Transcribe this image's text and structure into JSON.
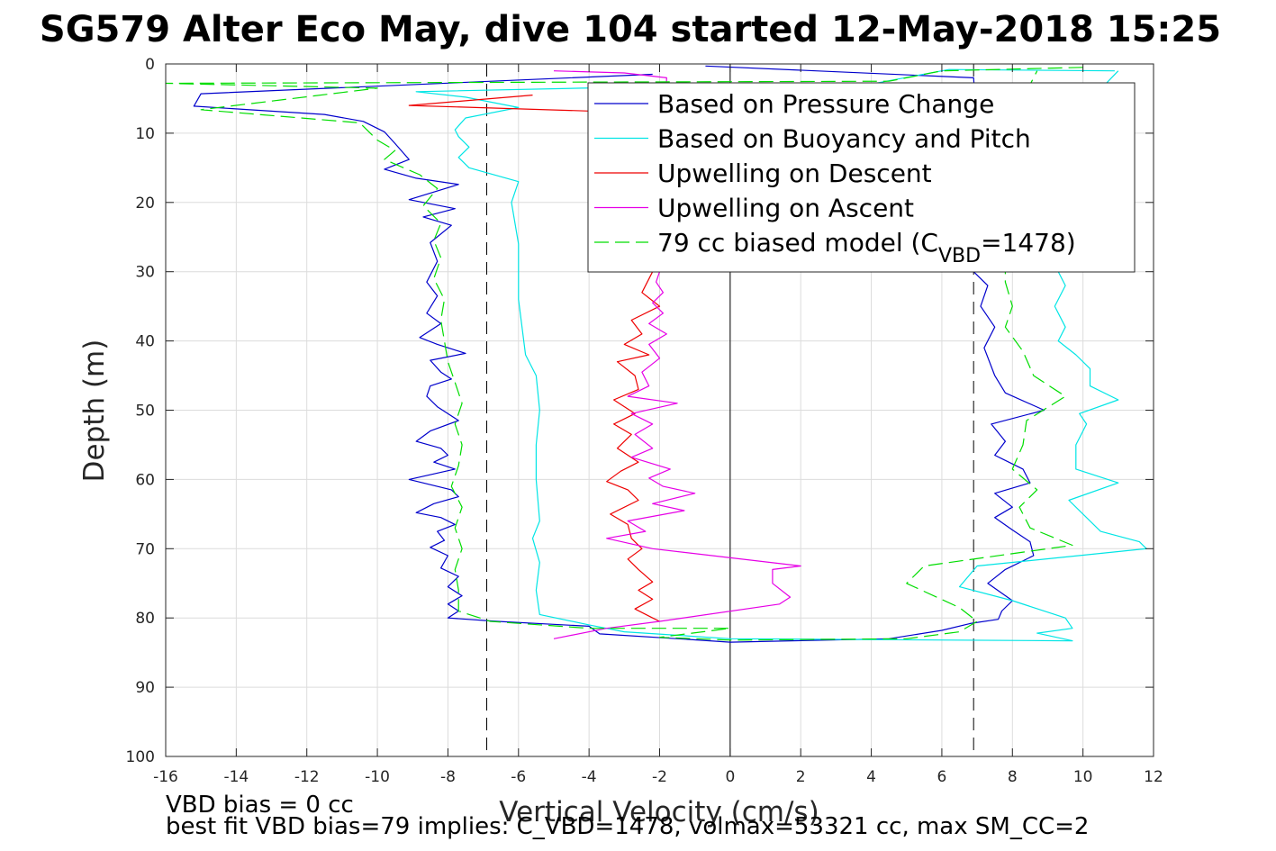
{
  "figure": {
    "title": "SG579 Alter Eco May, dive 104 started 12-May-2018 15:25",
    "footer_line1": "VBD bias = 0 cc",
    "footer_line2": "best fit VBD bias=79 implies: C_VBD=1478, volmax=53321 cc, max SM_CC=2"
  },
  "chart_data": {
    "type": "line",
    "title": "SG579 Alter Eco May, dive 104 started 12-May-2018 15:25",
    "xlabel": "Vertical Velocity (cm/s)",
    "ylabel": "Depth (m)",
    "xlim": [
      -16,
      12
    ],
    "ylim": [
      0,
      100
    ],
    "y_reversed": true,
    "grid": true,
    "legend_position": "top-right",
    "xticks": [
      -16,
      -14,
      -12,
      -10,
      -8,
      -6,
      -4,
      -2,
      0,
      2,
      4,
      6,
      8,
      10,
      12
    ],
    "yticks": [
      0,
      10,
      20,
      30,
      40,
      50,
      60,
      70,
      80,
      90,
      100
    ],
    "reference_lines": {
      "zero_x": 0,
      "dashed_x": [
        -6.9,
        6.9
      ]
    },
    "series": [
      {
        "name": "Based on Pressure Change",
        "color": "#0000cc",
        "dash": "solid",
        "points": [
          [
            -2.2,
            1.5
          ],
          [
            -15.0,
            4.3
          ],
          [
            -15.2,
            6.1
          ],
          [
            -11.5,
            7.3
          ],
          [
            -10.4,
            8.3
          ],
          [
            -9.8,
            9.8
          ],
          [
            -9.5,
            11.5
          ],
          [
            -9.1,
            13.8
          ],
          [
            -9.8,
            15.2
          ],
          [
            -8.9,
            16.5
          ],
          [
            -7.7,
            17.4
          ],
          [
            -9.1,
            19.6
          ],
          [
            -7.8,
            20.9
          ],
          [
            -8.7,
            22.1
          ],
          [
            -7.9,
            23.3
          ],
          [
            -8.5,
            25.8
          ],
          [
            -8.3,
            28.5
          ],
          [
            -8.6,
            31.5
          ],
          [
            -8.3,
            33.5
          ],
          [
            -8.6,
            36.0
          ],
          [
            -8.2,
            37.5
          ],
          [
            -8.8,
            39.5
          ],
          [
            -8.3,
            40.5
          ],
          [
            -7.5,
            41.8
          ],
          [
            -8.5,
            42.8
          ],
          [
            -8.2,
            44.5
          ],
          [
            -7.9,
            45.5
          ],
          [
            -8.5,
            46.5
          ],
          [
            -8.6,
            48.0
          ],
          [
            -8.3,
            49.5
          ],
          [
            -7.7,
            51.5
          ],
          [
            -8.5,
            53.0
          ],
          [
            -8.9,
            54.5
          ],
          [
            -8.2,
            55.5
          ],
          [
            -8.0,
            56.5
          ],
          [
            -8.4,
            57.5
          ],
          [
            -7.8,
            58.5
          ],
          [
            -9.1,
            60.0
          ],
          [
            -7.9,
            61.5
          ],
          [
            -7.7,
            62.5
          ],
          [
            -8.4,
            63.5
          ],
          [
            -8.9,
            64.8
          ],
          [
            -8.2,
            65.5
          ],
          [
            -7.8,
            66.5
          ],
          [
            -8.3,
            67.5
          ],
          [
            -8.1,
            68.8
          ],
          [
            -8.5,
            69.8
          ],
          [
            -8.0,
            71.0
          ],
          [
            -8.2,
            72.8
          ],
          [
            -7.7,
            74.0
          ],
          [
            -8.0,
            75.5
          ],
          [
            -7.6,
            76.8
          ],
          [
            -8.0,
            78.0
          ],
          [
            -7.7,
            79.0
          ],
          [
            -8.0,
            80.0
          ],
          [
            -6.6,
            80.5
          ],
          [
            -4.0,
            81.2
          ],
          [
            -3.7,
            82.3
          ],
          [
            -1.2,
            83.1
          ],
          [
            0.0,
            83.5
          ],
          [
            4.5,
            83.0
          ],
          [
            6.0,
            81.8
          ],
          [
            6.8,
            80.8
          ],
          [
            7.6,
            80.2
          ],
          [
            7.7,
            79.0
          ],
          [
            8.0,
            77.5
          ],
          [
            7.3,
            75.0
          ],
          [
            7.8,
            73.0
          ],
          [
            8.6,
            71.0
          ],
          [
            8.5,
            69.0
          ],
          [
            8.0,
            67.3
          ],
          [
            7.5,
            65.5
          ],
          [
            8.0,
            64.0
          ],
          [
            7.5,
            62.0
          ],
          [
            8.5,
            60.5
          ],
          [
            8.3,
            58.5
          ],
          [
            7.5,
            56.5
          ],
          [
            7.8,
            54.5
          ],
          [
            7.4,
            52.0
          ],
          [
            8.9,
            50.0
          ],
          [
            7.8,
            47.5
          ],
          [
            7.5,
            45.0
          ],
          [
            7.2,
            41.0
          ],
          [
            7.5,
            38.0
          ],
          [
            7.1,
            35.0
          ],
          [
            7.3,
            32.0
          ],
          [
            6.9,
            30.0
          ],
          [
            6.9,
            20.0
          ],
          [
            7.0,
            10.0
          ],
          [
            6.9,
            2.0
          ],
          [
            -0.7,
            0.3
          ]
        ]
      },
      {
        "name": "Based on Buoyancy and Pitch",
        "color": "#00e5e5",
        "dash": "solid",
        "points": [
          [
            10.9,
            1.0
          ],
          [
            6.2,
            0.8
          ],
          [
            4.0,
            2.9
          ],
          [
            -4.2,
            3.5
          ],
          [
            -8.9,
            4.0
          ],
          [
            -7.5,
            4.8
          ],
          [
            -6.0,
            6.3
          ],
          [
            -7.5,
            7.8
          ],
          [
            -7.8,
            9.5
          ],
          [
            -7.7,
            10.5
          ],
          [
            -7.4,
            12.0
          ],
          [
            -7.7,
            13.5
          ],
          [
            -7.4,
            15.0
          ],
          [
            -6.0,
            17.0
          ],
          [
            -6.2,
            20.0
          ],
          [
            -6.1,
            23.0
          ],
          [
            -6.0,
            26.0
          ],
          [
            -6.0,
            30.0
          ],
          [
            -6.0,
            34.0
          ],
          [
            -5.9,
            38.0
          ],
          [
            -5.8,
            42.0
          ],
          [
            -5.5,
            45.0
          ],
          [
            -5.4,
            50.0
          ],
          [
            -5.5,
            55.0
          ],
          [
            -5.5,
            60.0
          ],
          [
            -5.4,
            66.0
          ],
          [
            -5.6,
            68.5
          ],
          [
            -5.4,
            72.0
          ],
          [
            -5.5,
            76.0
          ],
          [
            -5.4,
            79.5
          ],
          [
            -4.0,
            81.0
          ],
          [
            -3.0,
            82.0
          ],
          [
            0.0,
            83.0
          ],
          [
            9.7,
            83.3
          ],
          [
            8.7,
            82.2
          ],
          [
            9.7,
            81.5
          ],
          [
            9.5,
            80.0
          ],
          [
            8.0,
            77.5
          ],
          [
            6.5,
            75.5
          ],
          [
            7.0,
            72.5
          ],
          [
            11.8,
            70.0
          ],
          [
            11.6,
            69.0
          ],
          [
            10.5,
            67.5
          ],
          [
            9.6,
            63.0
          ],
          [
            11.0,
            60.5
          ],
          [
            9.8,
            58.5
          ],
          [
            9.8,
            55.0
          ],
          [
            10.1,
            52.0
          ],
          [
            9.9,
            50.5
          ],
          [
            11.0,
            48.5
          ],
          [
            10.2,
            46.5
          ],
          [
            10.2,
            44.0
          ],
          [
            9.8,
            42.0
          ],
          [
            9.3,
            40.0
          ],
          [
            9.5,
            38.0
          ],
          [
            9.2,
            35.0
          ],
          [
            9.5,
            32.0
          ],
          [
            9.3,
            30.0
          ],
          [
            9.3,
            20.0
          ],
          [
            9.3,
            10.0
          ],
          [
            11.0,
            1.0
          ]
        ]
      },
      {
        "name": "Upwelling on Descent",
        "color": "#ee0000",
        "dash": "solid",
        "points": [
          [
            -5.6,
            4.5
          ],
          [
            -9.1,
            6.0
          ],
          [
            -4.0,
            6.8
          ],
          [
            -2.5,
            7.2
          ],
          [
            -2.2,
            30.0
          ],
          [
            -2.5,
            33.0
          ],
          [
            -2.0,
            35.0
          ],
          [
            -2.8,
            37.0
          ],
          [
            -2.5,
            39.0
          ],
          [
            -3.0,
            40.5
          ],
          [
            -2.3,
            42.0
          ],
          [
            -3.2,
            43.0
          ],
          [
            -2.7,
            45.0
          ],
          [
            -2.6,
            47.0
          ],
          [
            -3.3,
            48.5
          ],
          [
            -2.7,
            50.5
          ],
          [
            -3.3,
            52.0
          ],
          [
            -2.8,
            53.5
          ],
          [
            -3.2,
            55.5
          ],
          [
            -2.6,
            57.5
          ],
          [
            -3.1,
            58.8
          ],
          [
            -3.5,
            60.3
          ],
          [
            -2.9,
            61.5
          ],
          [
            -2.6,
            63.0
          ],
          [
            -3.4,
            65.0
          ],
          [
            -2.9,
            66.5
          ],
          [
            -2.8,
            68.5
          ],
          [
            -2.5,
            70.0
          ],
          [
            -2.9,
            71.5
          ],
          [
            -2.6,
            73.0
          ],
          [
            -2.2,
            74.8
          ],
          [
            -2.6,
            76.0
          ],
          [
            -2.2,
            77.3
          ],
          [
            -2.7,
            78.7
          ],
          [
            -2.2,
            80.0
          ],
          [
            -2.0,
            80.5
          ]
        ]
      },
      {
        "name": "Upwelling on Ascent",
        "color": "#e600e6",
        "dash": "solid",
        "points": [
          [
            -5.0,
            1.0
          ],
          [
            -3.0,
            1.3
          ],
          [
            -1.8,
            2.0
          ],
          [
            -2.0,
            30.0
          ],
          [
            -2.1,
            31.5
          ],
          [
            -1.9,
            33.0
          ],
          [
            -2.2,
            34.5
          ],
          [
            -1.9,
            36.0
          ],
          [
            -2.3,
            37.5
          ],
          [
            -1.8,
            39.0
          ],
          [
            -2.3,
            40.5
          ],
          [
            -2.0,
            42.5
          ],
          [
            -2.5,
            44.5
          ],
          [
            -2.3,
            46.5
          ],
          [
            -2.9,
            48.0
          ],
          [
            -1.5,
            49.0
          ],
          [
            -2.8,
            50.5
          ],
          [
            -2.2,
            52.0
          ],
          [
            -2.7,
            53.5
          ],
          [
            -2.2,
            55.5
          ],
          [
            -2.8,
            56.8
          ],
          [
            -1.7,
            58.5
          ],
          [
            -2.3,
            59.8
          ],
          [
            -1.9,
            61.0
          ],
          [
            -1.0,
            62.0
          ],
          [
            -2.2,
            63.5
          ],
          [
            -1.3,
            64.5
          ],
          [
            -2.9,
            66.0
          ],
          [
            -2.4,
            67.5
          ],
          [
            -3.5,
            68.5
          ],
          [
            -2.2,
            70.0
          ],
          [
            2.0,
            72.5
          ],
          [
            1.2,
            73.0
          ],
          [
            1.2,
            75.0
          ],
          [
            1.7,
            77.0
          ],
          [
            1.4,
            78.0
          ],
          [
            -2.0,
            80.5
          ],
          [
            -3.5,
            81.5
          ],
          [
            -5.0,
            83.0
          ]
        ]
      },
      {
        "name": "79 cc biased model (C_VBD=1478)",
        "color": "#00dd00",
        "dash": "dashed",
        "points": [
          [
            10.0,
            0.5
          ],
          [
            6.0,
            1.0
          ],
          [
            4.5,
            2.5
          ],
          [
            -16.0,
            2.8
          ],
          [
            -10.0,
            3.5
          ],
          [
            -15.0,
            6.6
          ],
          [
            -10.5,
            8.5
          ],
          [
            -10.0,
            11.0
          ],
          [
            -9.5,
            12.5
          ],
          [
            -9.8,
            13.8
          ],
          [
            -8.8,
            16.0
          ],
          [
            -8.3,
            18.0
          ],
          [
            -8.7,
            20.5
          ],
          [
            -8.2,
            23.0
          ],
          [
            -8.4,
            25.5
          ],
          [
            -8.2,
            28.0
          ],
          [
            -8.4,
            31.0
          ],
          [
            -8.1,
            34.0
          ],
          [
            -8.2,
            37.0
          ],
          [
            -8.1,
            40.0
          ],
          [
            -8.0,
            43.0
          ],
          [
            -7.8,
            46.0
          ],
          [
            -7.6,
            49.0
          ],
          [
            -7.8,
            52.0
          ],
          [
            -7.6,
            55.0
          ],
          [
            -7.7,
            58.0
          ],
          [
            -7.9,
            61.0
          ],
          [
            -7.6,
            64.0
          ],
          [
            -7.8,
            67.0
          ],
          [
            -7.6,
            70.0
          ],
          [
            -7.8,
            73.0
          ],
          [
            -7.7,
            76.0
          ],
          [
            -7.7,
            79.0
          ],
          [
            -6.8,
            80.5
          ],
          [
            -4.0,
            81.5
          ],
          [
            0.0,
            81.5
          ],
          [
            -2.0,
            82.8
          ],
          [
            0.0,
            83.2
          ],
          [
            5.0,
            83.0
          ],
          [
            6.5,
            82.0
          ],
          [
            7.0,
            80.5
          ],
          [
            6.5,
            78.5
          ],
          [
            5.0,
            75.0
          ],
          [
            5.5,
            72.5
          ],
          [
            9.7,
            69.5
          ],
          [
            8.5,
            67.0
          ],
          [
            8.2,
            64.0
          ],
          [
            8.7,
            61.5
          ],
          [
            8.0,
            58.5
          ],
          [
            8.3,
            55.0
          ],
          [
            8.4,
            51.5
          ],
          [
            9.5,
            48.0
          ],
          [
            8.6,
            45.0
          ],
          [
            8.3,
            41.5
          ],
          [
            7.8,
            38.0
          ],
          [
            8.0,
            35.0
          ],
          [
            7.8,
            31.5
          ],
          [
            7.8,
            20.0
          ],
          [
            7.8,
            10.0
          ],
          [
            8.7,
            1.0
          ]
        ]
      }
    ]
  },
  "legend": {
    "items": [
      {
        "label": "Based on Pressure Change",
        "color": "#0000cc",
        "dash": "solid"
      },
      {
        "label": "Based on Buoyancy and Pitch",
        "color": "#00e5e5",
        "dash": "solid"
      },
      {
        "label": "Upwelling on Descent",
        "color": "#ee0000",
        "dash": "solid"
      },
      {
        "label": "Upwelling on Ascent",
        "color": "#e600e6",
        "dash": "solid"
      },
      {
        "label": "79 cc biased model (C",
        "label_sub": "VBD",
        "label_tail": "=1478)",
        "color": "#00dd00",
        "dash": "dashed"
      }
    ]
  },
  "colors": {
    "axis": "#262626",
    "grid": "#dcdcdc",
    "reference": "#000000"
  }
}
